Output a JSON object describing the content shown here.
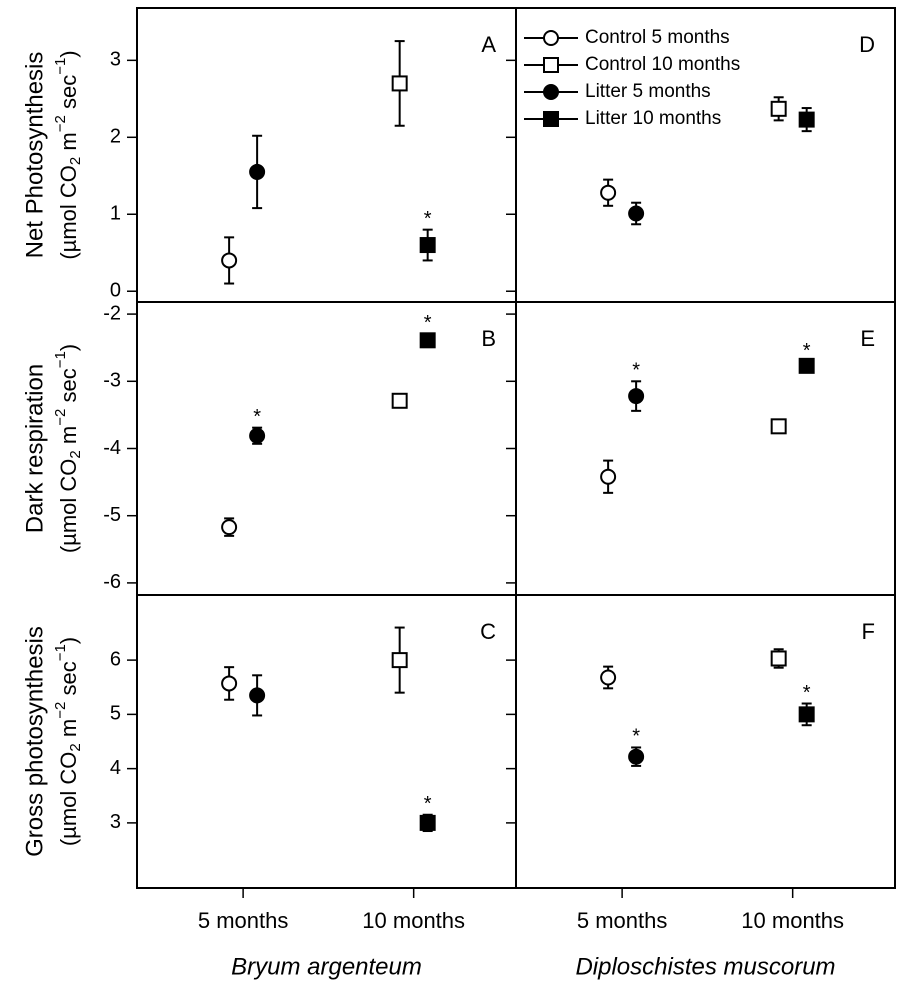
{
  "chart_data": [
    {
      "type": "scatter",
      "label": "A",
      "ylabel": "Net Photosynthesis",
      "yunit": [
        {
          "text": "(µmol CO"
        },
        {
          "text": "2",
          "shift": "sub"
        },
        {
          "text": " m"
        },
        {
          "text": "−2",
          "shift": "super"
        },
        {
          "text": " sec"
        },
        {
          "text": "−1",
          "shift": "super"
        },
        {
          "text": ")"
        }
      ],
      "ylim": [
        -0.14,
        3.68
      ],
      "yticks": [
        0,
        1,
        2,
        3
      ],
      "show_ytick_labels": true,
      "series": [
        {
          "marker": "circle",
          "fill": "white",
          "values": [
            0.4,
            null
          ],
          "errors": [
            0.3,
            null
          ]
        },
        {
          "marker": "square",
          "fill": "white",
          "values": [
            null,
            2.7
          ],
          "errors": [
            null,
            0.55
          ]
        },
        {
          "marker": "circle",
          "fill": "black",
          "values": [
            1.55,
            null
          ],
          "errors": [
            0.47,
            null
          ]
        },
        {
          "marker": "square",
          "fill": "black",
          "values": [
            null,
            0.6
          ],
          "errors": [
            null,
            0.2
          ],
          "annotations": [
            null,
            "*"
          ]
        }
      ]
    },
    {
      "type": "scatter",
      "label": "B",
      "ylabel": "Dark respiration",
      "yunit": [
        {
          "text": "(µmol CO"
        },
        {
          "text": "2",
          "shift": "sub"
        },
        {
          "text": " m"
        },
        {
          "text": "−2",
          "shift": "super"
        },
        {
          "text": " sec"
        },
        {
          "text": "−1",
          "shift": "super"
        },
        {
          "text": ")"
        }
      ],
      "ylim": [
        -6.18,
        -1.82
      ],
      "yticks": [
        -6,
        -5,
        -4,
        -3,
        -2
      ],
      "show_ytick_labels": true,
      "series": [
        {
          "marker": "circle",
          "fill": "white",
          "values": [
            -5.17,
            null
          ],
          "errors": [
            0.13,
            null
          ]
        },
        {
          "marker": "square",
          "fill": "white",
          "values": [
            null,
            -3.29
          ],
          "errors": [
            null,
            0.08
          ]
        },
        {
          "marker": "circle",
          "fill": "black",
          "values": [
            -3.81,
            null
          ],
          "errors": [
            0.12,
            null
          ],
          "annotations": [
            "*",
            null
          ]
        },
        {
          "marker": "square",
          "fill": "black",
          "values": [
            null,
            -2.39
          ],
          "errors": [
            null,
            0.1
          ],
          "annotations": [
            null,
            "*"
          ]
        }
      ]
    },
    {
      "type": "scatter",
      "label": "C",
      "ylabel": "Gross photosynthesis",
      "yunit": [
        {
          "text": "(µmol CO"
        },
        {
          "text": "2",
          "shift": "sub"
        },
        {
          "text": " m"
        },
        {
          "text": "−2",
          "shift": "super"
        },
        {
          "text": " sec"
        },
        {
          "text": "−1",
          "shift": "super"
        },
        {
          "text": ")"
        }
      ],
      "ylim": [
        1.8,
        7.2
      ],
      "yticks": [
        3,
        4,
        5,
        6
      ],
      "show_ytick_labels": true,
      "categories": [
        "5 months",
        "10 months"
      ],
      "xlabel": "Bryum argenteum",
      "series": [
        {
          "marker": "circle",
          "fill": "white",
          "values": [
            5.57,
            null
          ],
          "errors": [
            0.3,
            null
          ]
        },
        {
          "marker": "square",
          "fill": "white",
          "values": [
            null,
            6.0
          ],
          "errors": [
            null,
            0.6
          ]
        },
        {
          "marker": "circle",
          "fill": "black",
          "values": [
            5.35,
            null
          ],
          "errors": [
            0.37,
            null
          ]
        },
        {
          "marker": "square",
          "fill": "black",
          "values": [
            null,
            3.0
          ],
          "errors": [
            null,
            0.15
          ],
          "annotations": [
            null,
            "*"
          ]
        }
      ]
    },
    {
      "type": "scatter",
      "label": "D",
      "ylim": [
        -0.14,
        3.68
      ],
      "yticks": [
        0,
        1,
        2,
        3
      ],
      "show_ytick_labels": false,
      "series": [
        {
          "name": "Control 5 months",
          "marker": "circle",
          "fill": "white",
          "values": [
            1.28,
            null
          ],
          "errors": [
            0.17,
            null
          ]
        },
        {
          "name": "Control 10 months",
          "marker": "square",
          "fill": "white",
          "values": [
            null,
            2.37
          ],
          "errors": [
            null,
            0.15
          ]
        },
        {
          "name": "Litter 5 months",
          "marker": "circle",
          "fill": "black",
          "values": [
            1.01,
            null
          ],
          "errors": [
            0.14,
            null
          ]
        },
        {
          "name": "Litter 10 months",
          "marker": "square",
          "fill": "black",
          "values": [
            null,
            2.23
          ],
          "errors": [
            null,
            0.15
          ]
        }
      ]
    },
    {
      "type": "scatter",
      "label": "E",
      "ylim": [
        -6.18,
        -1.82
      ],
      "yticks": [
        -6,
        -5,
        -4,
        -3,
        -2
      ],
      "show_ytick_labels": false,
      "series": [
        {
          "marker": "circle",
          "fill": "white",
          "values": [
            -4.42,
            null
          ],
          "errors": [
            0.24,
            null
          ]
        },
        {
          "marker": "square",
          "fill": "white",
          "values": [
            null,
            -3.67
          ],
          "errors": [
            null,
            0.06
          ]
        },
        {
          "marker": "circle",
          "fill": "black",
          "values": [
            -3.22,
            null
          ],
          "errors": [
            0.22,
            null
          ],
          "annotations": [
            "*",
            null
          ]
        },
        {
          "marker": "square",
          "fill": "black",
          "values": [
            null,
            -2.77
          ],
          "errors": [
            null,
            0.06
          ],
          "annotations": [
            null,
            "*"
          ]
        }
      ]
    },
    {
      "type": "scatter",
      "label": "F",
      "ylim": [
        1.8,
        7.2
      ],
      "yticks": [
        3,
        4,
        5,
        6
      ],
      "show_ytick_labels": false,
      "categories": [
        "5 months",
        "10 months"
      ],
      "xlabel": "Diploschistes muscorum",
      "series": [
        {
          "marker": "circle",
          "fill": "white",
          "values": [
            5.68,
            null
          ],
          "errors": [
            0.2,
            null
          ]
        },
        {
          "marker": "square",
          "fill": "white",
          "values": [
            null,
            6.03
          ],
          "errors": [
            null,
            0.17
          ]
        },
        {
          "marker": "circle",
          "fill": "black",
          "values": [
            4.22,
            null
          ],
          "errors": [
            0.17,
            null
          ],
          "annotations": [
            "*",
            null
          ]
        },
        {
          "marker": "square",
          "fill": "black",
          "values": [
            null,
            5.0
          ],
          "errors": [
            null,
            0.2
          ],
          "annotations": [
            null,
            "*"
          ]
        }
      ]
    }
  ]
}
